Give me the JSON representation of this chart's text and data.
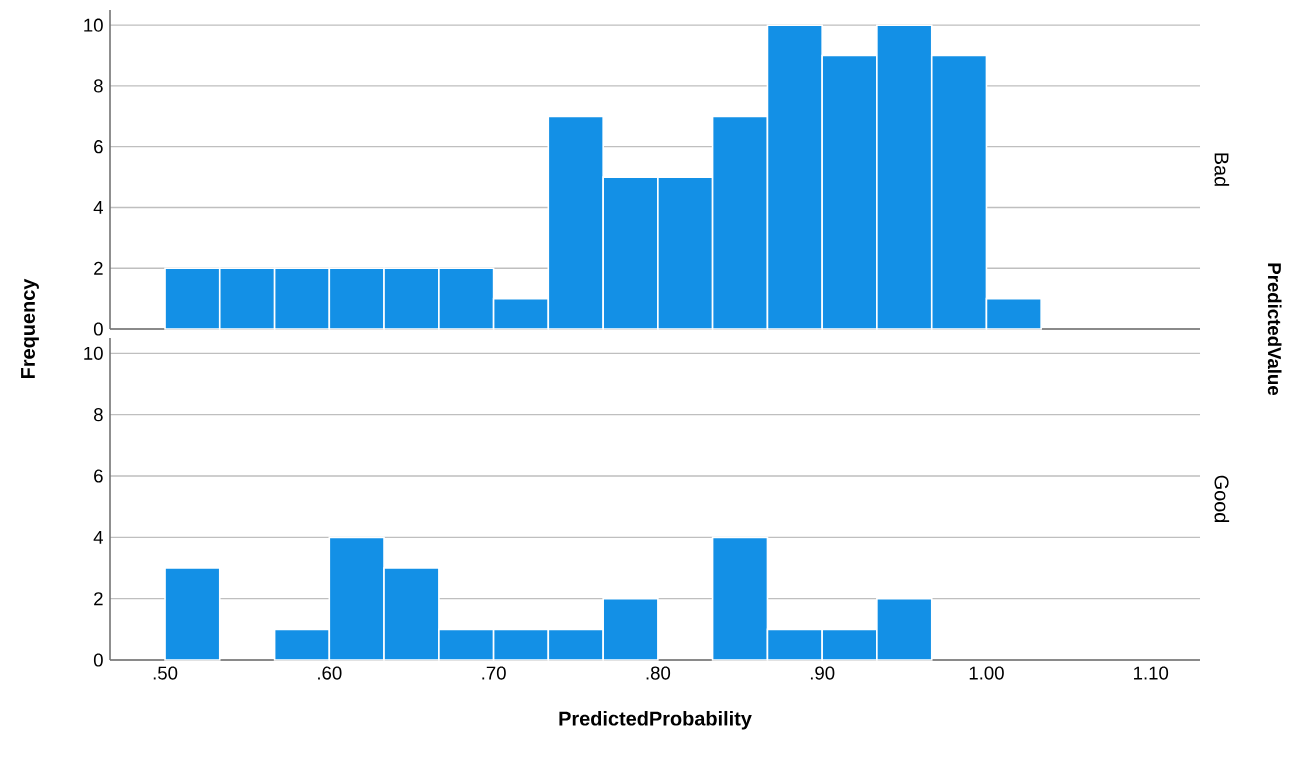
{
  "chart_data": [
    {
      "type": "histogram",
      "ylabel": "Frequency",
      "annotations": [
        "Bad",
        "PredictedValue"
      ],
      "bins": [
        0.5,
        0.5333,
        0.5667,
        0.6,
        0.6333,
        0.6667,
        0.7,
        0.7333,
        0.7667,
        0.8,
        0.8333,
        0.8667,
        0.9,
        0.9333,
        0.9667,
        1.0,
        1.0333
      ],
      "values": [
        2,
        2,
        2,
        2,
        2,
        2,
        1,
        7,
        5,
        5,
        7,
        10,
        9,
        10,
        9,
        1
      ],
      "color": "#1390e6",
      "xlim": [
        0.4665,
        1.13
      ],
      "ylim": [
        0,
        10.5
      ],
      "xticks": [
        {
          "value": 0.5,
          "label": null
        },
        {
          "value": 0.6,
          "label": null
        },
        {
          "value": 0.7,
          "label": null
        },
        {
          "value": 0.8,
          "label": null
        },
        {
          "value": 0.9,
          "label": null
        },
        {
          "value": 1.0,
          "label": null
        },
        {
          "value": 1.1,
          "label": null
        }
      ],
      "yticks": [
        0,
        2,
        4,
        6,
        8,
        10
      ],
      "grid": "y",
      "tick_labels": "y"
    },
    {
      "type": "histogram",
      "annotations": [
        "Good"
      ],
      "xlabel": "PredictedProbability",
      "bins": [
        0.5,
        0.5333,
        0.5667,
        0.6,
        0.6333,
        0.6667,
        0.7,
        0.7333,
        0.7667,
        0.8,
        0.8333,
        0.8667,
        0.9,
        0.9333,
        0.9667,
        1.0,
        1.0333
      ],
      "values": [
        3,
        0,
        1,
        4,
        3,
        1,
        1,
        1,
        2,
        0,
        4,
        1,
        1,
        2,
        0,
        0
      ],
      "color": "#1390e6",
      "xlim": [
        0.4665,
        1.13
      ],
      "ylim": [
        0,
        10.5
      ],
      "xticks": [
        {
          "value": 0.5,
          "label": ".50"
        },
        {
          "value": 0.6,
          "label": ".60"
        },
        {
          "value": 0.7,
          "label": ".70"
        },
        {
          "value": 0.8,
          "label": ".80"
        },
        {
          "value": 0.9,
          "label": ".90"
        },
        {
          "value": 1.0,
          "label": "1.00"
        },
        {
          "value": 1.1,
          "label": "1.10"
        }
      ],
      "yticks": [
        0,
        2,
        4,
        6,
        8,
        10
      ],
      "grid": "y"
    }
  ]
}
